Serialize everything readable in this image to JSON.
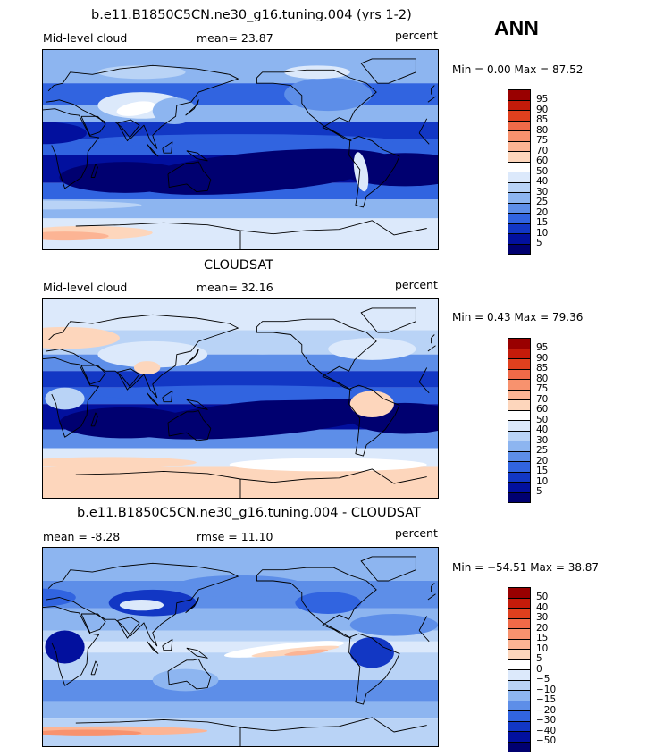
{
  "header": {
    "season": "ANN"
  },
  "panels": [
    {
      "title": "b.e11.B1850C5CN.ne30_g16.tuning.004 (yrs 1-2)",
      "left_label": "Mid-level cloud",
      "center_label": "mean=  23.87",
      "right_label": "percent",
      "minmax": "Min =   0.00 Max =  87.52",
      "colorbar": {
        "labels": [
          "95",
          "90",
          "85",
          "80",
          "75",
          "70",
          "60",
          "50",
          "40",
          "30",
          "25",
          "20",
          "15",
          "10",
          "5"
        ],
        "colors": [
          "#990000",
          "#c41b0a",
          "#e0401e",
          "#f06a48",
          "#f8926e",
          "#fcb494",
          "#fdd6bc",
          "#ffffff",
          "#dce9fb",
          "#b9d3f6",
          "#8db5f0",
          "#5d8ee8",
          "#3164e0",
          "#1237c4",
          "#02109e",
          "#000070"
        ]
      },
      "map_mode": "model"
    },
    {
      "title": "CLOUDSAT",
      "left_label": "Mid-level cloud",
      "center_label": "mean=  32.16",
      "right_label": "percent",
      "minmax": "Min =   0.43 Max =  79.36",
      "colorbar": {
        "labels": [
          "95",
          "90",
          "85",
          "80",
          "75",
          "70",
          "60",
          "50",
          "40",
          "30",
          "25",
          "20",
          "15",
          "10",
          "5"
        ],
        "colors": [
          "#990000",
          "#c41b0a",
          "#e0401e",
          "#f06a48",
          "#f8926e",
          "#fcb494",
          "#fdd6bc",
          "#ffffff",
          "#dce9fb",
          "#b9d3f6",
          "#8db5f0",
          "#5d8ee8",
          "#3164e0",
          "#1237c4",
          "#02109e",
          "#000070"
        ]
      },
      "map_mode": "obs"
    },
    {
      "title": "b.e11.B1850C5CN.ne30_g16.tuning.004 - CLOUDSAT",
      "left_label": "mean =   -8.28",
      "center_label": "rmse =  11.10",
      "right_label": "percent",
      "minmax": "Min = −54.51 Max =  38.87",
      "colorbar": {
        "labels": [
          "50",
          "40",
          "30",
          "20",
          "15",
          "10",
          "5",
          "0",
          "−5",
          "−10",
          "−15",
          "−20",
          "−30",
          "−40",
          "−50"
        ],
        "colors": [
          "#990000",
          "#c41b0a",
          "#e0401e",
          "#f06a48",
          "#f8926e",
          "#fcb494",
          "#fdd6bc",
          "#ffffff",
          "#dce9fb",
          "#b9d3f6",
          "#8db5f0",
          "#5d8ee8",
          "#3164e0",
          "#1237c4",
          "#02109e",
          "#000070"
        ]
      },
      "map_mode": "diff"
    }
  ]
}
